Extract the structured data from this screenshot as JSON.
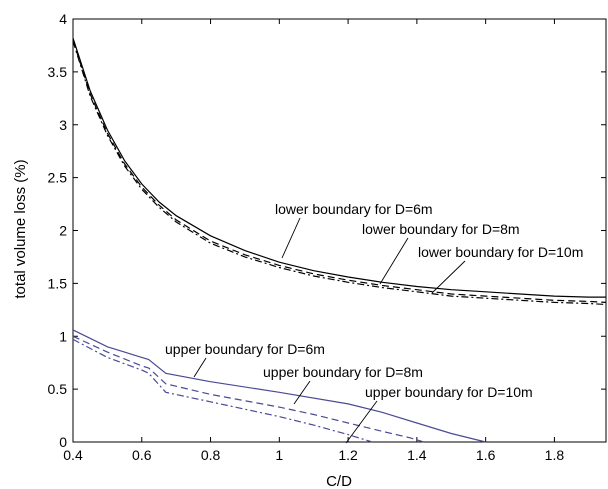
{
  "chart_data": {
    "type": "line",
    "title": "",
    "xlabel": "C/D",
    "ylabel": "total volume loss (%)",
    "xlim": [
      0.4,
      1.95
    ],
    "ylim": [
      0,
      4
    ],
    "xticks": [
      "0.4",
      "0.6",
      "0.8",
      "1",
      "1.2",
      "1.4",
      "1.6",
      "1.8"
    ],
    "yticks": [
      "0",
      "0.5",
      "1",
      "1.5",
      "2",
      "2.5",
      "3",
      "3.5",
      "4"
    ],
    "grid": false,
    "series": [
      {
        "name": "lower boundary for D=6m",
        "color": "#000000",
        "dash": "solid",
        "x": [
          0.4,
          0.45,
          0.5,
          0.55,
          0.6,
          0.65,
          0.7,
          0.8,
          0.9,
          1.0,
          1.1,
          1.2,
          1.3,
          1.4,
          1.5,
          1.6,
          1.7,
          1.8,
          1.9,
          1.95
        ],
        "y": [
          3.82,
          3.32,
          2.95,
          2.66,
          2.44,
          2.27,
          2.14,
          1.95,
          1.81,
          1.7,
          1.62,
          1.56,
          1.51,
          1.47,
          1.44,
          1.42,
          1.4,
          1.38,
          1.37,
          1.37
        ]
      },
      {
        "name": "lower boundary for D=8m",
        "color": "#000000",
        "dash": "dashed",
        "x": [
          0.4,
          0.45,
          0.5,
          0.55,
          0.6,
          0.65,
          0.7,
          0.8,
          0.9,
          1.0,
          1.1,
          1.2,
          1.3,
          1.4,
          1.5,
          1.6,
          1.7,
          1.8,
          1.9,
          1.95
        ],
        "y": [
          3.8,
          3.29,
          2.92,
          2.63,
          2.41,
          2.24,
          2.1,
          1.9,
          1.77,
          1.67,
          1.59,
          1.53,
          1.48,
          1.44,
          1.4,
          1.38,
          1.36,
          1.34,
          1.33,
          1.32
        ]
      },
      {
        "name": "lower boundary for D=10m",
        "color": "#000000",
        "dash": "dashdot",
        "x": [
          0.4,
          0.45,
          0.5,
          0.55,
          0.6,
          0.65,
          0.7,
          0.8,
          0.9,
          1.0,
          1.1,
          1.2,
          1.3,
          1.4,
          1.5,
          1.6,
          1.7,
          1.8,
          1.9,
          1.95
        ],
        "y": [
          3.79,
          3.27,
          2.9,
          2.61,
          2.39,
          2.22,
          2.08,
          1.88,
          1.75,
          1.65,
          1.57,
          1.51,
          1.46,
          1.42,
          1.38,
          1.36,
          1.34,
          1.32,
          1.31,
          1.3
        ]
      },
      {
        "name": "upper boundary for D=6m",
        "color": "#4b4a96",
        "dash": "solid",
        "x": [
          0.4,
          0.5,
          0.6,
          0.62,
          0.67,
          0.8,
          1.0,
          1.2,
          1.3,
          1.4,
          1.5,
          1.6
        ],
        "y": [
          1.06,
          0.9,
          0.8,
          0.78,
          0.65,
          0.57,
          0.47,
          0.36,
          0.28,
          0.18,
          0.08,
          0.0
        ]
      },
      {
        "name": "upper boundary for D=8m",
        "color": "#4b4a96",
        "dash": "dashed",
        "x": [
          0.4,
          0.5,
          0.6,
          0.62,
          0.67,
          0.8,
          1.0,
          1.1,
          1.2,
          1.3,
          1.38,
          1.42
        ],
        "y": [
          1.0,
          0.85,
          0.72,
          0.7,
          0.55,
          0.45,
          0.33,
          0.26,
          0.18,
          0.1,
          0.04,
          0.0
        ]
      },
      {
        "name": "upper boundary for D=10m",
        "color": "#4b4a96",
        "dash": "dashdot",
        "x": [
          0.4,
          0.5,
          0.6,
          0.62,
          0.67,
          0.8,
          1.0,
          1.1,
          1.2,
          1.27
        ],
        "y": [
          0.97,
          0.8,
          0.68,
          0.65,
          0.47,
          0.38,
          0.24,
          0.16,
          0.07,
          0.0
        ]
      }
    ]
  }
}
